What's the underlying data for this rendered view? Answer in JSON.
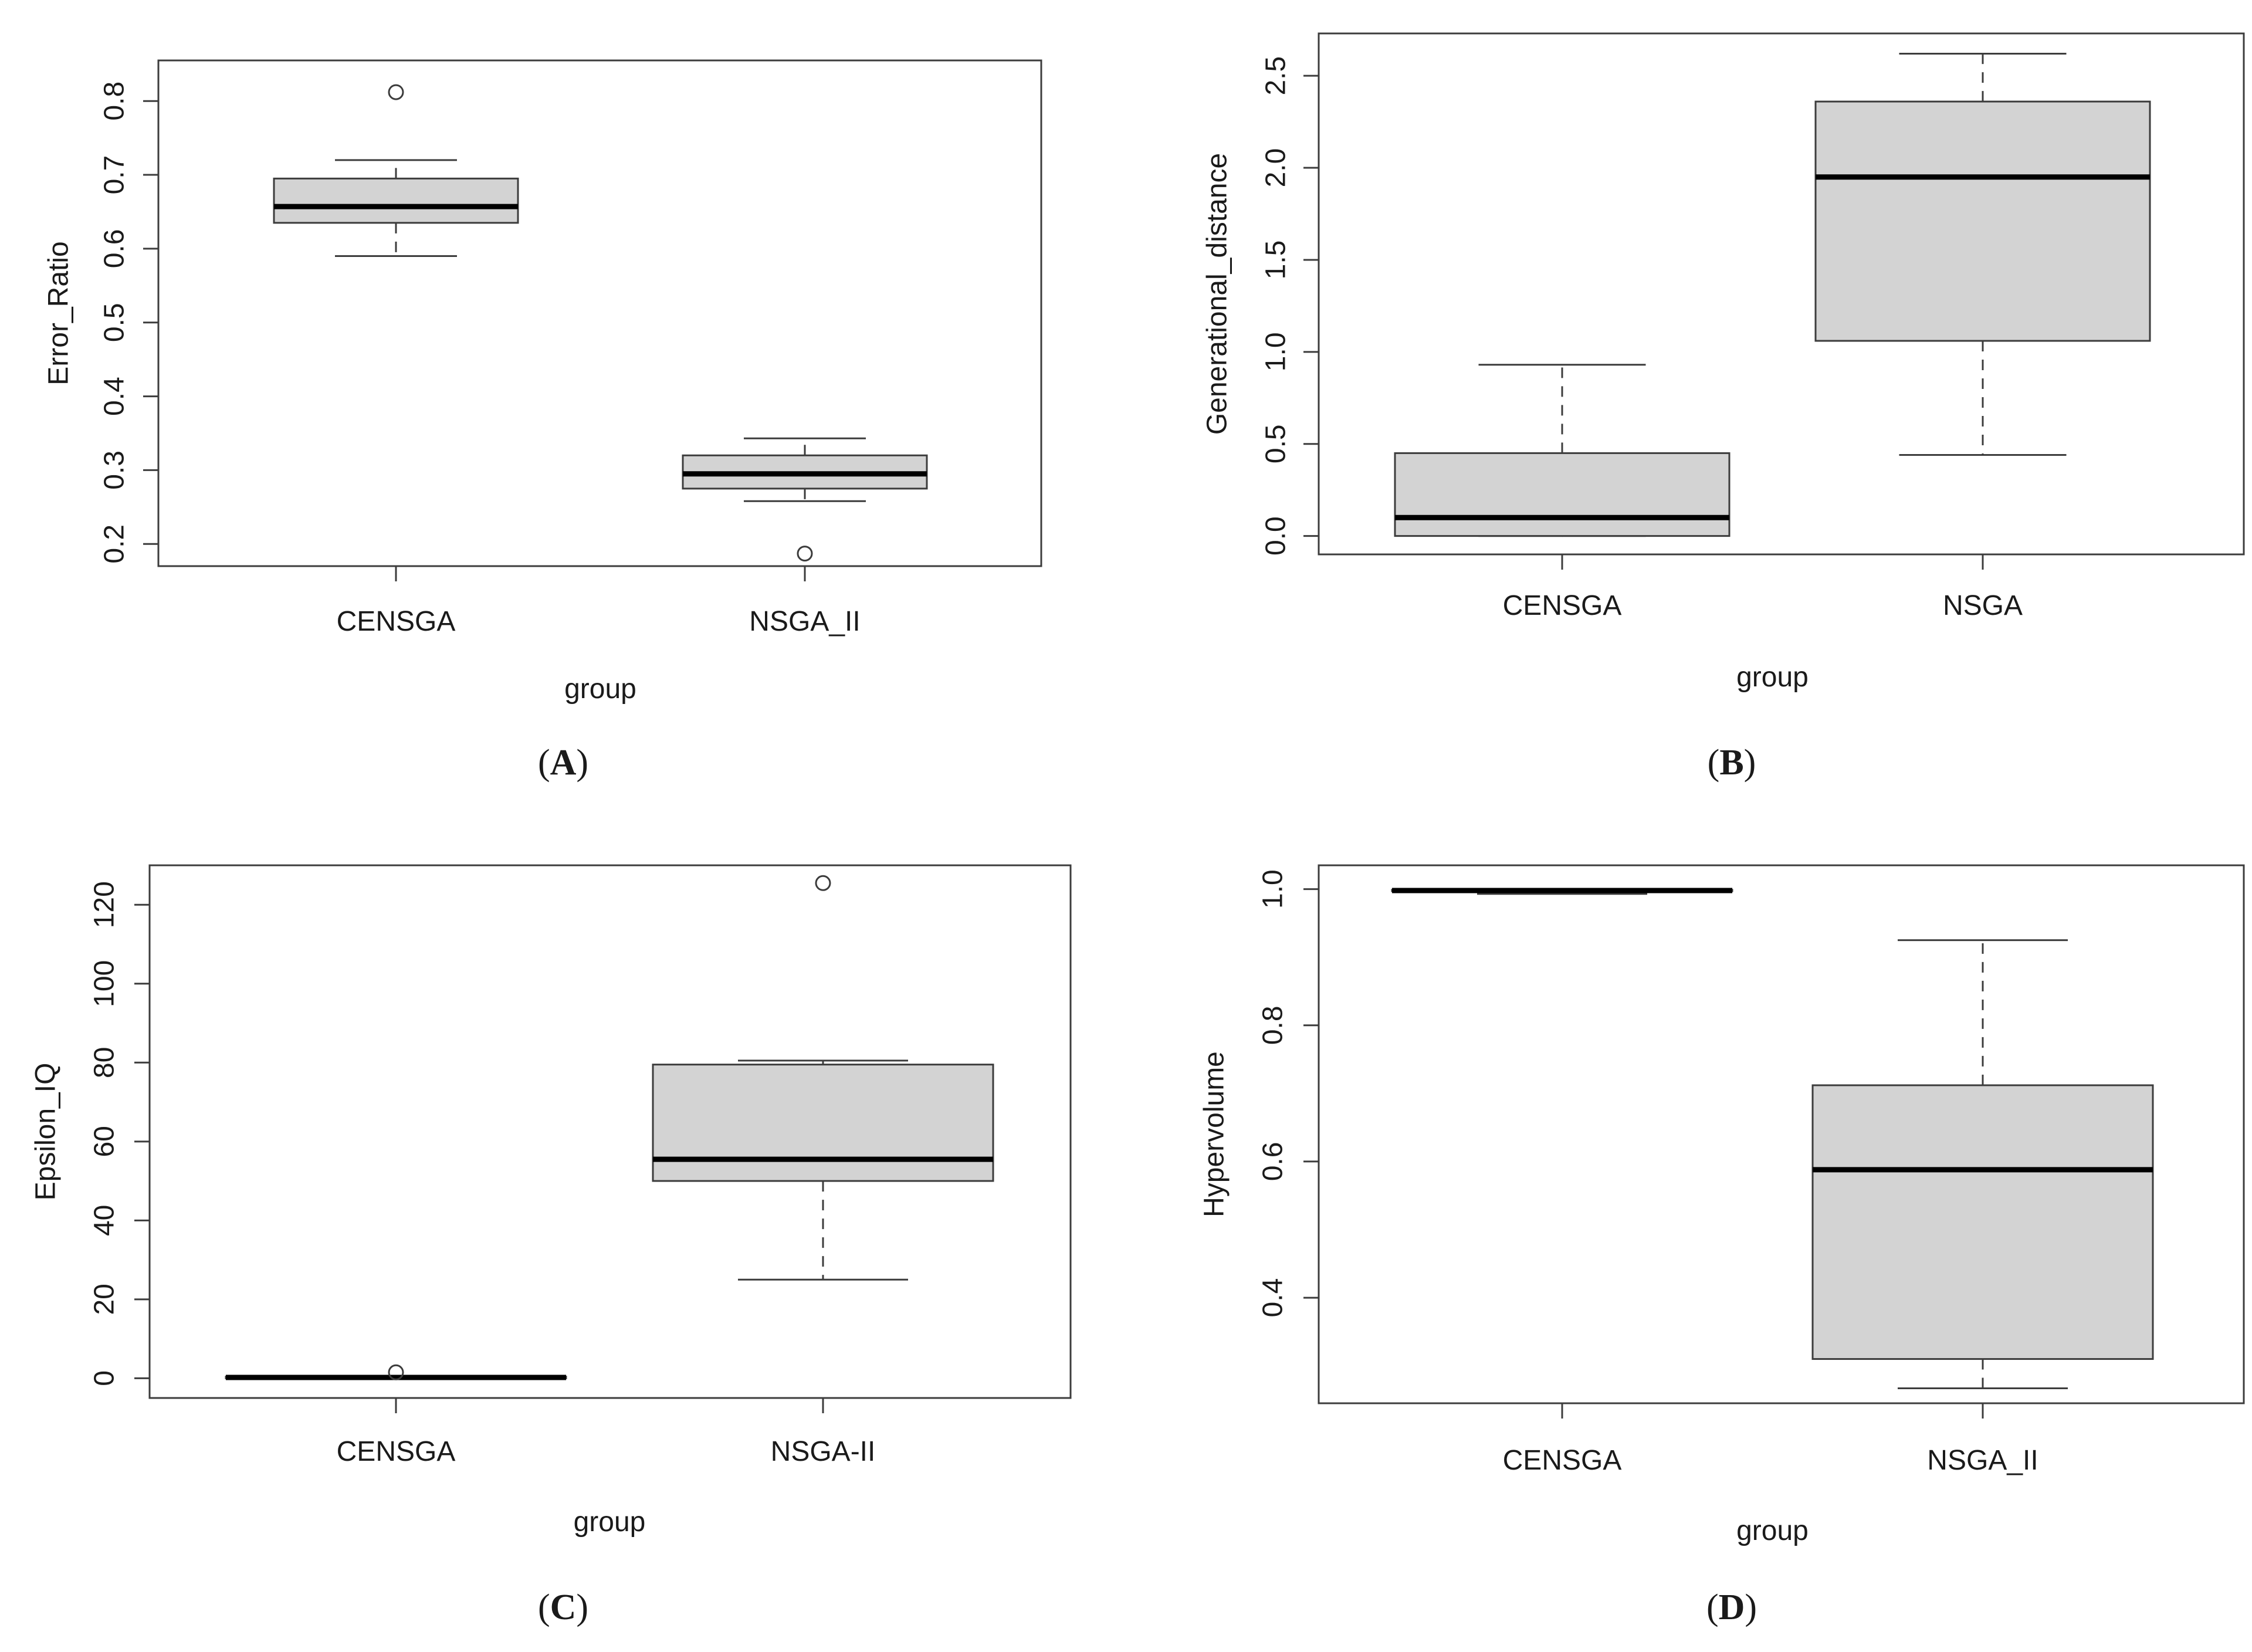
{
  "panel_labels": [
    "(A)",
    "(B)",
    "(C)",
    "(D)"
  ],
  "colors": {
    "box_fill": "#d3d3d3",
    "stroke": "#3c3c3c",
    "median": "#000000",
    "text": "#1a1a1a"
  },
  "chart_data": [
    {
      "type": "boxplot",
      "panel": "(A)",
      "ylabel": "Error_Ratio",
      "xlabel": "group",
      "ylim": [
        0.17,
        0.855
      ],
      "yticks": [
        "0.2",
        "0.3",
        "0.4",
        "0.5",
        "0.6",
        "0.7",
        "0.8"
      ],
      "ytick_values": [
        0.2,
        0.3,
        0.4,
        0.5,
        0.6,
        0.7,
        0.8
      ],
      "categories": [
        "CENSGA",
        "NSGA_II"
      ],
      "boxes": [
        {
          "name": "CENSGA",
          "whisker_low": 0.59,
          "q1": 0.635,
          "median": 0.657,
          "q3": 0.695,
          "whisker_high": 0.72,
          "outliers": [
            0.812
          ]
        },
        {
          "name": "NSGA_II",
          "whisker_low": 0.258,
          "q1": 0.275,
          "median": 0.295,
          "q3": 0.32,
          "whisker_high": 0.343,
          "outliers": [
            0.187
          ]
        }
      ]
    },
    {
      "type": "boxplot",
      "panel": "(B)",
      "ylabel": "Generational_distance",
      "xlabel": "group",
      "ylim": [
        -0.1,
        2.73
      ],
      "yticks": [
        "0.0",
        "0.5",
        "1.0",
        "1.5",
        "2.0",
        "2.5"
      ],
      "ytick_values": [
        0,
        0.5,
        1.0,
        1.5,
        2.0,
        2.5
      ],
      "categories": [
        "CENSGA",
        "NSGA"
      ],
      "boxes": [
        {
          "name": "CENSGA",
          "whisker_low": 0.0,
          "q1": 0.0,
          "median": 0.1,
          "q3": 0.45,
          "whisker_high": 0.93,
          "outliers": []
        },
        {
          "name": "NSGA",
          "whisker_low": 0.44,
          "q1": 1.06,
          "median": 1.95,
          "q3": 2.36,
          "whisker_high": 2.62,
          "outliers": []
        }
      ]
    },
    {
      "type": "boxplot",
      "panel": "(C)",
      "ylabel": "Epsilon_IQ",
      "xlabel": "group",
      "ylim": [
        -5,
        130
      ],
      "yticks": [
        "0",
        "20",
        "40",
        "60",
        "80",
        "100",
        "120"
      ],
      "ytick_values": [
        0,
        20,
        40,
        60,
        80,
        100,
        120
      ],
      "categories": [
        "CENSGA",
        "NSGA-II"
      ],
      "boxes": [
        {
          "name": "CENSGA",
          "whisker_low": 0.0,
          "q1": 0.0,
          "median": 0.2,
          "q3": 0.4,
          "whisker_high": 0.6,
          "outliers": [
            1.5
          ]
        },
        {
          "name": "NSGA-II",
          "whisker_low": 25,
          "q1": 50,
          "median": 55.5,
          "q3": 79.5,
          "whisker_high": 80.5,
          "outliers": [
            125.5
          ]
        }
      ]
    },
    {
      "type": "boxplot",
      "panel": "(D)",
      "ylabel": "Hypervolume",
      "xlabel": "group",
      "ylim": [
        0.245,
        1.035
      ],
      "yticks": [
        "0.4",
        "0.6",
        "0.8",
        "1.0"
      ],
      "ytick_values": [
        0.4,
        0.6,
        0.8,
        1.0
      ],
      "categories": [
        "CENSGA",
        "NSGA_II"
      ],
      "boxes": [
        {
          "name": "CENSGA",
          "whisker_low": 0.993,
          "q1": 0.997,
          "median": 0.998,
          "q3": 0.999,
          "whisker_high": 1.0,
          "outliers": []
        },
        {
          "name": "NSGA_II",
          "whisker_low": 0.267,
          "q1": 0.31,
          "median": 0.588,
          "q3": 0.712,
          "whisker_high": 0.925,
          "outliers": []
        }
      ]
    }
  ]
}
